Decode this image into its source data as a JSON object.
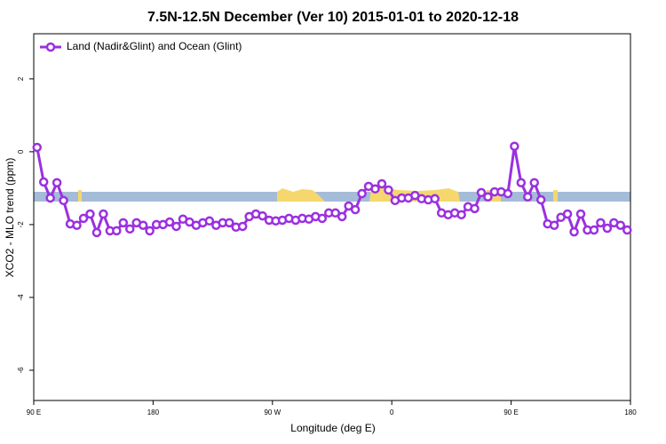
{
  "chart_data": {
    "type": "line",
    "title": "7.5N-12.5N December (Ver 10)   2015-01-01 to 2020-12-18",
    "x_label": "Longitude (deg E)",
    "y_label": "XCO2 - MLO trend (ppm)",
    "x": [
      92.5,
      97.5,
      102.5,
      107.5,
      112.5,
      117.5,
      122.5,
      127.5,
      132.5,
      137.5,
      142.5,
      147.5,
      152.5,
      157.5,
      162.5,
      167.5,
      172.5,
      177.5,
      182.5,
      187.5,
      192.5,
      197.5,
      202.5,
      207.5,
      212.5,
      217.5,
      222.5,
      227.5,
      232.5,
      237.5,
      242.5,
      247.5,
      252.5,
      257.5,
      262.5,
      267.5,
      272.5,
      277.5,
      282.5,
      287.5,
      292.5,
      297.5,
      302.5,
      307.5,
      312.5,
      317.5,
      322.5,
      327.5,
      332.5,
      337.5,
      342.5,
      347.5,
      352.5,
      357.5,
      362.5,
      367.5,
      372.5,
      377.5,
      382.5,
      387.5,
      392.5,
      397.5,
      402.5,
      407.5,
      412.5,
      417.5,
      422.5,
      427.5,
      432.5,
      437.5,
      442.5,
      447.5,
      452.5,
      457.5,
      462.5,
      467.5,
      472.5,
      477.5,
      482.5,
      487.5,
      492.5,
      497.5,
      502.5,
      507.5,
      512.5,
      517.5,
      522.5,
      527.5,
      532.5,
      537.5
    ],
    "series": [
      {
        "name": "Land (Nadir&Glint) and Ocean (Glint)",
        "color": "#9b30e0",
        "values": [
          0.12,
          -0.83,
          -1.27,
          -0.85,
          -1.34,
          -1.98,
          -2.02,
          -1.83,
          -1.71,
          -2.22,
          -1.71,
          -2.17,
          -2.17,
          -1.95,
          -2.12,
          -1.95,
          -2.02,
          -2.17,
          -2.0,
          -2.0,
          -1.93,
          -2.05,
          -1.85,
          -1.93,
          -2.02,
          -1.95,
          -1.9,
          -2.02,
          -1.95,
          -1.95,
          -2.07,
          -2.05,
          -1.78,
          -1.71,
          -1.76,
          -1.88,
          -1.9,
          -1.88,
          -1.83,
          -1.88,
          -1.83,
          -1.85,
          -1.78,
          -1.83,
          -1.68,
          -1.68,
          -1.78,
          -1.49,
          -1.59,
          -1.15,
          -0.95,
          -1.02,
          -0.88,
          -1.05,
          -1.34,
          -1.27,
          -1.27,
          -1.2,
          -1.29,
          -1.32,
          -1.29,
          -1.68,
          -1.73,
          -1.68,
          -1.73,
          -1.51,
          -1.56,
          -1.12,
          -1.24,
          -1.1,
          -1.1,
          -1.15,
          0.15,
          -0.85,
          -1.24,
          -0.85,
          -1.32,
          -1.98,
          -2.02,
          -1.8,
          -1.71,
          -2.2,
          -1.71,
          -2.15,
          -2.15,
          -1.95,
          -2.1,
          -1.95,
          -2.02,
          -2.15
        ]
      }
    ],
    "xlim": [
      90,
      540
    ],
    "xticks": [
      {
        "value": 90,
        "label": "90 E"
      },
      180,
      {
        "value": 270,
        "label": "90 W"
      },
      {
        "value": 360,
        "label": "0"
      },
      {
        "value": 450,
        "label": "90 E"
      },
      {
        "value": 540,
        "label": "180"
      }
    ],
    "ylim": [
      -6.83,
      3.24
    ],
    "yticks": [
      2,
      0,
      -2,
      -4,
      -6
    ],
    "legend": "top-left"
  }
}
